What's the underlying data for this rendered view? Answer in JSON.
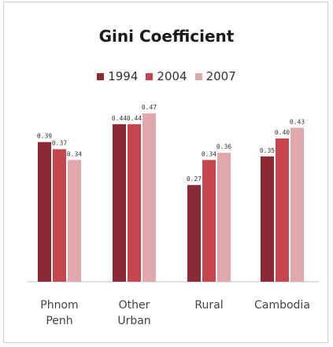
{
  "chart_data": {
    "type": "bar",
    "title": "Gini Coefficient",
    "categories": [
      [
        "Phnom",
        "Penh"
      ],
      [
        "Other",
        "Urban"
      ],
      [
        "Rural"
      ],
      [
        "Cambodia"
      ]
    ],
    "series": [
      {
        "name": "1994",
        "color": "#8b2a34",
        "values": [
          0.39,
          0.44,
          0.27,
          0.35
        ],
        "labels": [
          "0.39",
          "0.44",
          "0.27",
          "0.35"
        ]
      },
      {
        "name": "2004",
        "color": "#c4474f",
        "values": [
          0.37,
          0.44,
          0.34,
          0.4
        ],
        "labels": [
          "0.37",
          "0.44",
          "0.34",
          "0.40"
        ]
      },
      {
        "name": "2007",
        "color": "#e1a8ab",
        "values": [
          0.34,
          0.47,
          0.36,
          0.43
        ],
        "labels": [
          "0.34",
          "0.47",
          "0.36",
          "0.43"
        ]
      }
    ],
    "ylim": [
      0,
      0.5
    ],
    "legend_position": "top-center",
    "grid": false
  }
}
